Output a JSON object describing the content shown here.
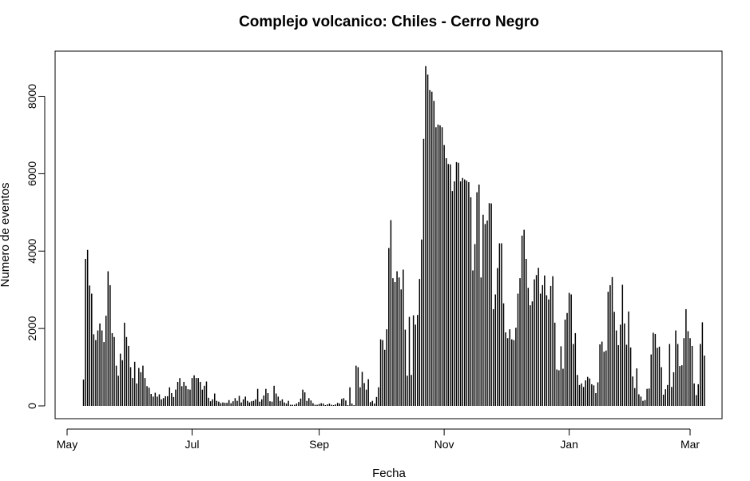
{
  "chart_data": {
    "type": "bar",
    "title": "Complejo volcanico: Chiles - Cerro Negro",
    "xlabel": "Fecha",
    "ylabel": "Numero de eventos",
    "ylim": [
      0,
      9000
    ],
    "yticks": [
      0,
      2000,
      4000,
      6000,
      8000
    ],
    "xticks": [
      {
        "label": "May",
        "day": 0
      },
      {
        "label": "Jul",
        "day": 61
      },
      {
        "label": "Sep",
        "day": 123
      },
      {
        "label": "Nov",
        "day": 184
      },
      {
        "label": "Jan",
        "day": 245
      },
      {
        "label": "Mar",
        "day": 304
      }
    ],
    "start_day": 7,
    "bar_color": "#000000",
    "grid": false,
    "values": [
      0,
      680,
      3800,
      4030,
      3110,
      2900,
      1850,
      1700,
      1950,
      2130,
      1950,
      1650,
      2330,
      3480,
      3120,
      1880,
      1780,
      1040,
      780,
      1350,
      1180,
      2150,
      1780,
      1550,
      1000,
      720,
      1140,
      580,
      980,
      870,
      1040,
      720,
      510,
      470,
      310,
      240,
      340,
      240,
      300,
      170,
      200,
      250,
      250,
      480,
      330,
      230,
      420,
      620,
      720,
      510,
      620,
      520,
      430,
      420,
      720,
      790,
      720,
      720,
      620,
      420,
      520,
      630,
      210,
      120,
      170,
      320,
      130,
      110,
      70,
      90,
      80,
      80,
      150,
      70,
      120,
      200,
      130,
      260,
      90,
      170,
      240,
      130,
      90,
      120,
      130,
      170,
      440,
      110,
      170,
      270,
      440,
      330,
      120,
      110,
      520,
      320,
      240,
      130,
      170,
      90,
      60,
      130,
      30,
      30,
      30,
      60,
      100,
      190,
      420,
      350,
      130,
      200,
      140,
      70,
      30,
      30,
      50,
      70,
      60,
      20,
      40,
      60,
      30,
      20,
      40,
      80,
      60,
      180,
      200,
      140,
      20,
      480,
      60,
      20,
      1040,
      1000,
      480,
      880,
      590,
      420,
      690,
      100,
      130,
      60,
      230,
      480,
      1720,
      1700,
      1450,
      1980,
      4080,
      4800,
      3300,
      3200,
      3480,
      3320,
      3010,
      3520,
      1970,
      780,
      2300,
      800,
      2340,
      2100,
      2350,
      3280,
      4300,
      6900,
      8780,
      8560,
      8160,
      8120,
      7880,
      7200,
      7270,
      7250,
      7200,
      6740,
      6400,
      6250,
      6240,
      5550,
      5800,
      6300,
      6280,
      5800,
      5890,
      5850,
      5820,
      5780,
      5390,
      3500,
      4180,
      5520,
      5720,
      3320,
      4940,
      4700,
      4790,
      5240,
      5230,
      2500,
      2880,
      3560,
      4200,
      4200,
      2650,
      1900,
      1750,
      1980,
      1720,
      1700,
      2020,
      2900,
      3300,
      4400,
      4550,
      3800,
      3050,
      2600,
      2700,
      3270,
      3380,
      3570,
      2900,
      3120,
      3370,
      2860,
      2750,
      3100,
      3350,
      2150,
      940,
      920,
      1540,
      960,
      2230,
      2400,
      2920,
      2880,
      1600,
      1880,
      800,
      540,
      580,
      490,
      660,
      750,
      710,
      560,
      530,
      330,
      610,
      1590,
      1660,
      1400,
      1430,
      2950,
      3120,
      3330,
      2430,
      1950,
      1570,
      2100,
      3130,
      2130,
      1580,
      2440,
      1510,
      760,
      460,
      970,
      300,
      240,
      130,
      150,
      440,
      450,
      1330,
      1890,
      1860,
      1500,
      1530,
      1000,
      290,
      430,
      540,
      1600,
      490,
      870,
      1950,
      1600,
      1030,
      1050,
      1750,
      2500,
      1930,
      1750,
      1550,
      580,
      280,
      560,
      1600,
      2160,
      1300
    ]
  }
}
